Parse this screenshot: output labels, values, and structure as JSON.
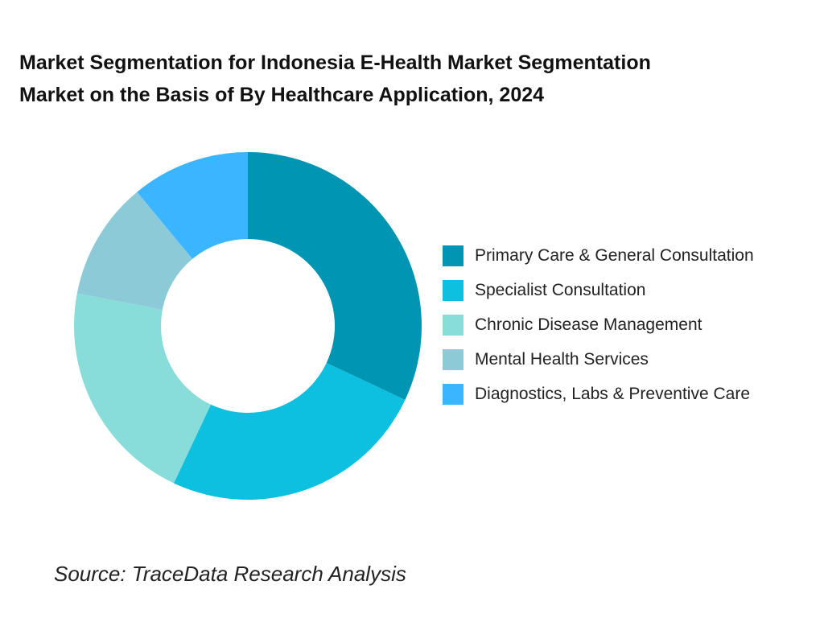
{
  "chart_data": {
    "type": "pie",
    "variant": "donut",
    "title_lines": [
      "Market Segmentation for Indonesia E-Health Market Segmentation",
      "Market on the Basis of By Healthcare Application, 2024"
    ],
    "categories": [
      "Primary Care & General Consultation",
      "Specialist Consultation",
      "Chronic Disease Management",
      "Mental Health Services",
      "Diagnostics, Labs & Preventive Care"
    ],
    "values": [
      32,
      25,
      21,
      11,
      11
    ],
    "colors": [
      "#0096B3",
      "#0DC0E0",
      "#88DCDA",
      "#8CCAD8",
      "#3BB5FF"
    ],
    "legend_position": "right",
    "source": "Source: TraceData Research Analysis"
  }
}
